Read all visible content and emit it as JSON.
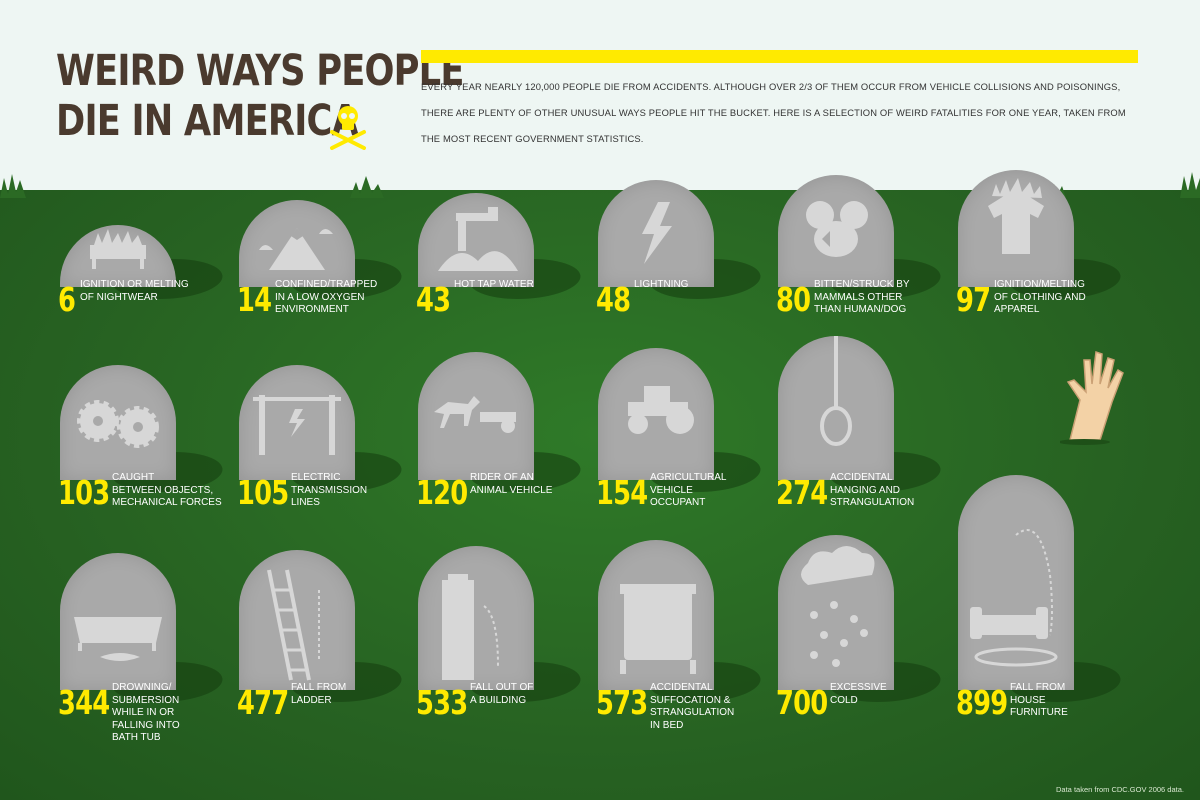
{
  "header": {
    "title_line1": "WEIRD WAYS PEOPLE",
    "title_line2": "DIE IN AMERICA",
    "intro": "Every year nearly 120,000 people die from accidents. Although over 2/3 of them occur from vehicle collisions and poisonings, there are plenty of other unusual ways people hit the bucket. Here is a selection of weird fatalities for one year, taken from the most recent government statistics."
  },
  "colors": {
    "accent": "#ffea00",
    "grass": "#2b6a24",
    "sky": "#eef6f3",
    "stone": "#a9a9a9",
    "title": "#4a3a2e"
  },
  "causes": [
    {
      "count": "6",
      "label": "Ignition or melting\nof nightwear",
      "icon": "bed-on-fire-icon"
    },
    {
      "count": "14",
      "label": "Confined/trapped\nin a low oxygen\nenvironment",
      "icon": "mountain-icon"
    },
    {
      "count": "43",
      "label": "Hot tap water",
      "icon": "faucet-icon"
    },
    {
      "count": "48",
      "label": "Lightning",
      "icon": "lightning-icon"
    },
    {
      "count": "80",
      "label": "Bitten/struck by\nmammals other\nthan human/dog",
      "icon": "rodent-icon"
    },
    {
      "count": "97",
      "label": "Ignition/melting\nof clothing and\napparel",
      "icon": "burning-shirt-icon"
    },
    {
      "count": "103",
      "label": "Caught\nbetween objects,\nmechanical forces",
      "icon": "gears-icon"
    },
    {
      "count": "105",
      "label": "Electric\ntransmission\nlines",
      "icon": "power-lines-icon"
    },
    {
      "count": "120",
      "label": "Rider of an\nanimal vehicle",
      "icon": "horse-cart-icon"
    },
    {
      "count": "154",
      "label": "Agricultural\nvehicle\noccupant",
      "icon": "tractor-icon"
    },
    {
      "count": "274",
      "label": "Accidental\nhanging and\nstrangulation",
      "icon": "noose-icon"
    },
    {
      "count": "344",
      "label": "Drowning/\nsubmersion\nwhile in or\nfalling into\nbath tub",
      "icon": "bathtub-icon"
    },
    {
      "count": "477",
      "label": "Fall from\nladder",
      "icon": "ladder-icon"
    },
    {
      "count": "533",
      "label": "Fall out of\na building",
      "icon": "building-icon"
    },
    {
      "count": "573",
      "label": "Accidental\nsuffocation &\nstrangulation\nin bed",
      "icon": "bed-icon"
    },
    {
      "count": "700",
      "label": "Excessive\ncold",
      "icon": "snow-cloud-icon"
    },
    {
      "count": "899",
      "label": "Fall from\nhouse\nfurniture",
      "icon": "sofa-icon"
    }
  ],
  "footnote": "Data taken from CDC.GOV 2006 data."
}
